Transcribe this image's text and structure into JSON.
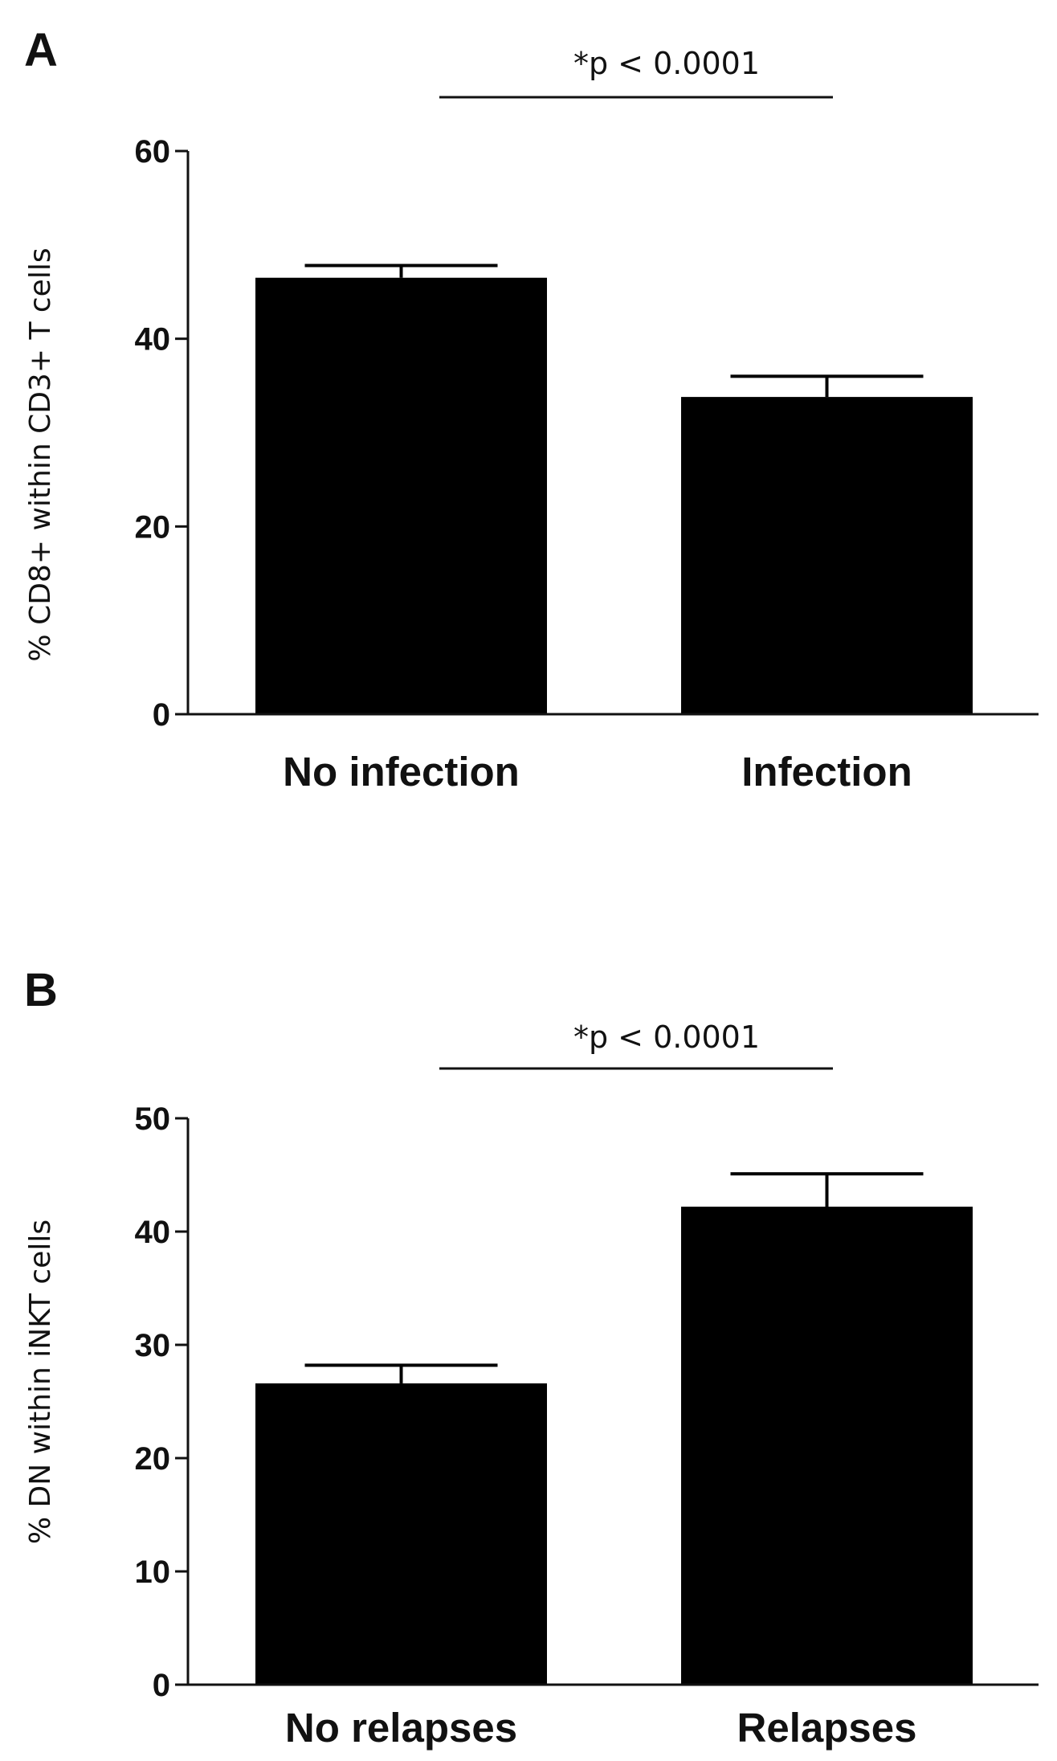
{
  "chart_data": [
    {
      "panel": "A",
      "type": "bar",
      "categories": [
        "No infection",
        "Infection"
      ],
      "values": [
        46.5,
        33.8
      ],
      "errors": [
        1.3,
        2.2
      ],
      "ylabel": "% CD8+ within CD3+ T cells",
      "xlabel": "",
      "ylim": [
        0,
        60
      ],
      "yticks": [
        0,
        20,
        40,
        60
      ],
      "annotation": "*p < 0.0001",
      "bar_color": "#000000"
    },
    {
      "panel": "B",
      "type": "bar",
      "categories": [
        "No relapses",
        "Relapses"
      ],
      "values": [
        26.6,
        42.2
      ],
      "errors": [
        1.6,
        2.9
      ],
      "ylabel": "% DN within iNKT  cells",
      "xlabel": "",
      "ylim": [
        0,
        50
      ],
      "yticks": [
        0,
        10,
        20,
        30,
        40,
        50
      ],
      "annotation": "*p < 0.0001",
      "bar_color": "#000000"
    }
  ]
}
